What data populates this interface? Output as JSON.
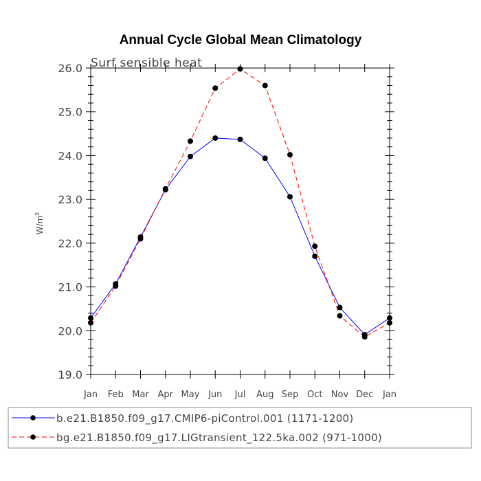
{
  "chart_data": {
    "type": "line",
    "title": "Annual Cycle Global Mean Climatology",
    "subtitle": "Surf sensible heat",
    "ylabel": "W/m",
    "ylabel_sup": "2",
    "xlabel": "",
    "categories": [
      "Jan",
      "Feb",
      "Mar",
      "Apr",
      "May",
      "Jun",
      "Jul",
      "Aug",
      "Sep",
      "Oct",
      "Nov",
      "Dec",
      "Jan"
    ],
    "ylim": [
      19.0,
      26.0
    ],
    "yticks": [
      "19.0",
      "20.0",
      "21.0",
      "22.0",
      "23.0",
      "24.0",
      "25.0",
      "26.0"
    ],
    "series": [
      {
        "name": "b.e21.B1850.f09_g17.CMIP6-piControl.001 (1171-1200)",
        "color": "#0000ff",
        "dash": "solid",
        "values": [
          20.29,
          21.07,
          22.14,
          23.22,
          23.98,
          24.4,
          24.37,
          23.94,
          23.06,
          21.7,
          20.53,
          19.91,
          20.29
        ]
      },
      {
        "name": "bg.e21.B1850.f09_g17.LIGtransient_122.5ka.002 (971-1000)",
        "color": "#ff0000",
        "dash": "dashed",
        "values": [
          20.18,
          21.02,
          22.1,
          23.24,
          24.33,
          25.54,
          25.98,
          25.6,
          24.02,
          21.93,
          20.34,
          19.86,
          20.18
        ]
      }
    ]
  }
}
